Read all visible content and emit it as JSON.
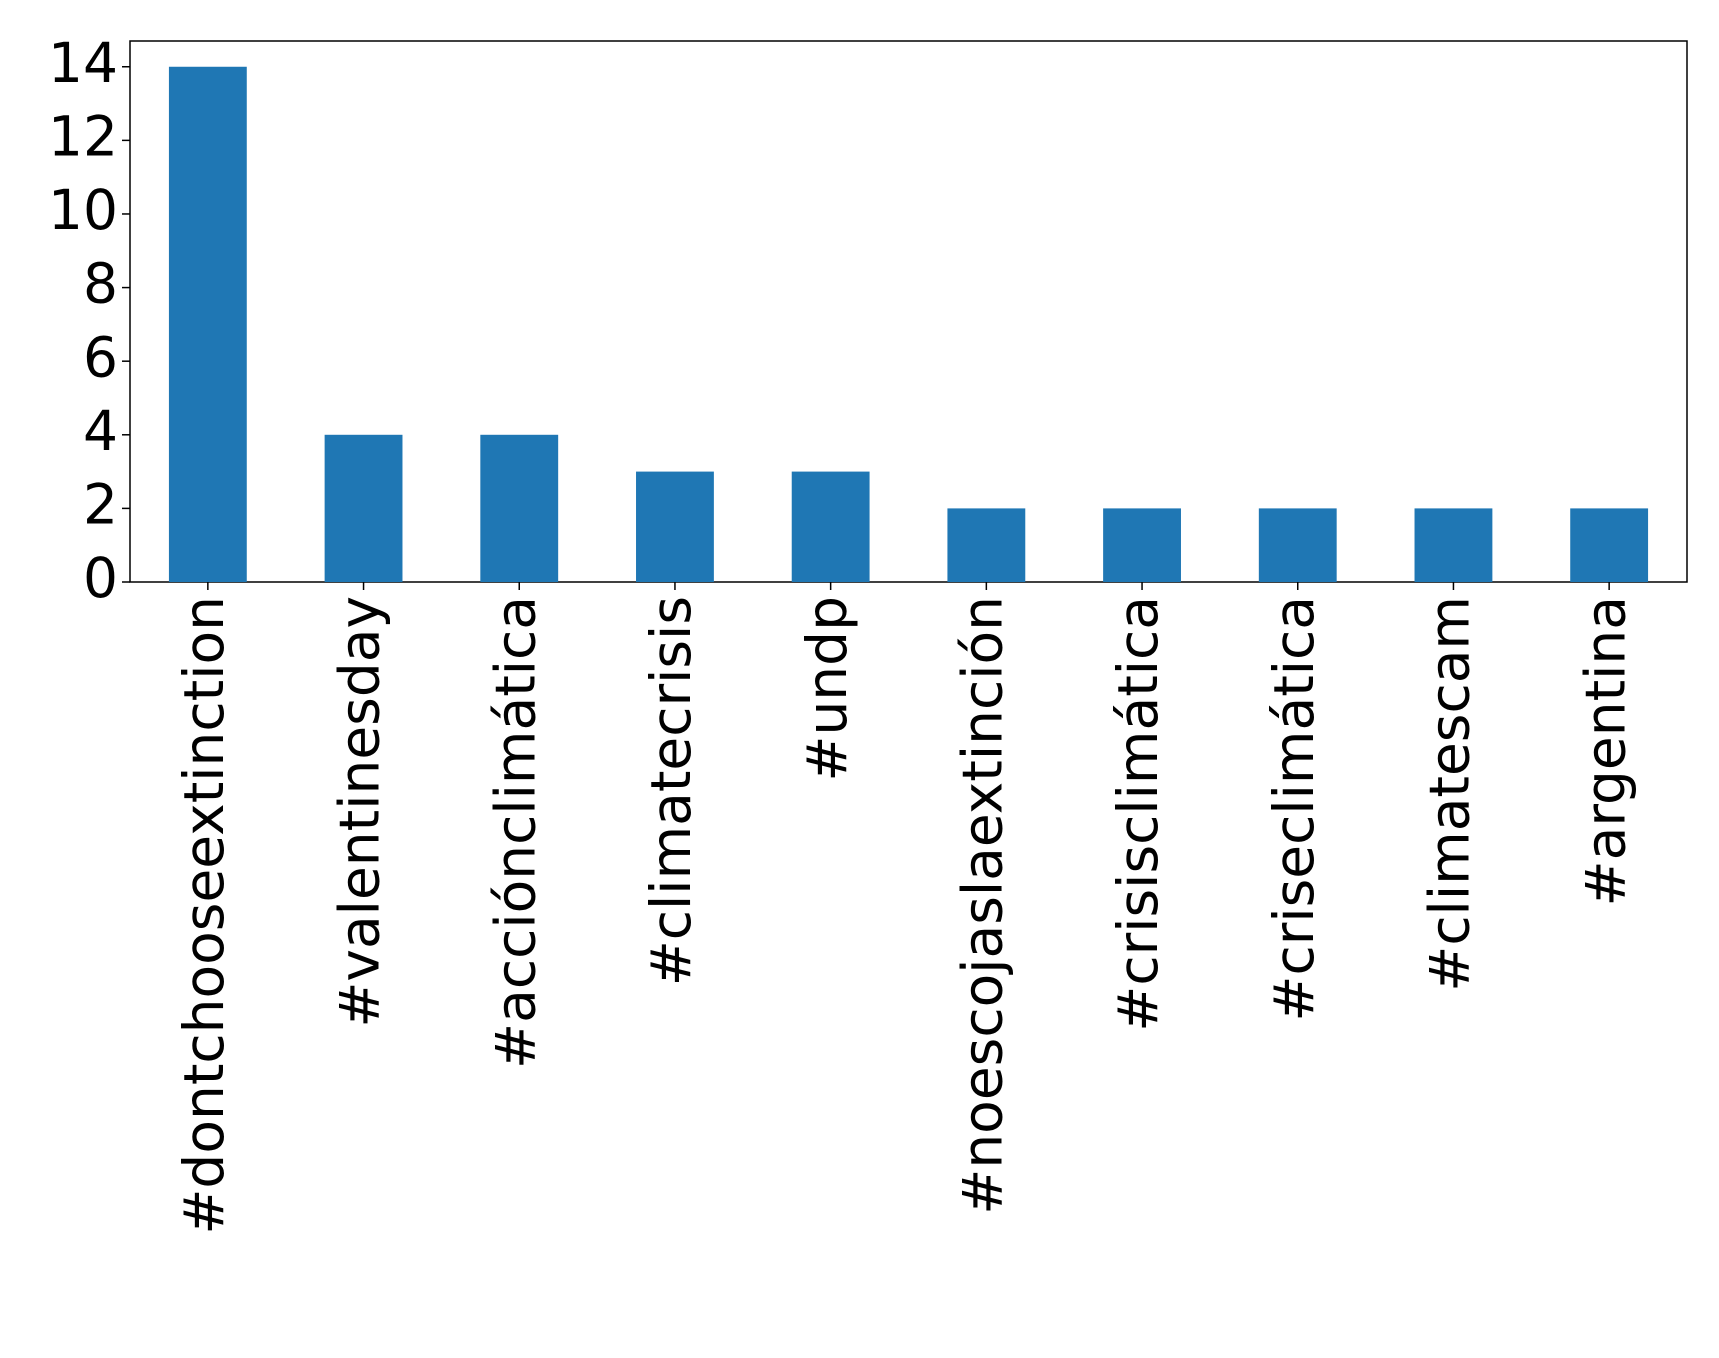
{
  "chart_data": {
    "type": "bar",
    "categories": [
      "#dontchooseextinction",
      "#valentinesday",
      "#acciónclimática",
      "#climatecrisis",
      "#undp",
      "#noescojaslaextinción",
      "#crisisclimática",
      "#criseclimática",
      "#climatescam",
      "#argentina"
    ],
    "values": [
      14,
      4,
      4,
      3,
      3,
      2,
      2,
      2,
      2,
      2
    ],
    "color": "#1f77b4",
    "ylim": [
      0,
      14.7
    ],
    "yticks": [
      0,
      2,
      4,
      6,
      8,
      10,
      12,
      14
    ],
    "grid": false
  }
}
